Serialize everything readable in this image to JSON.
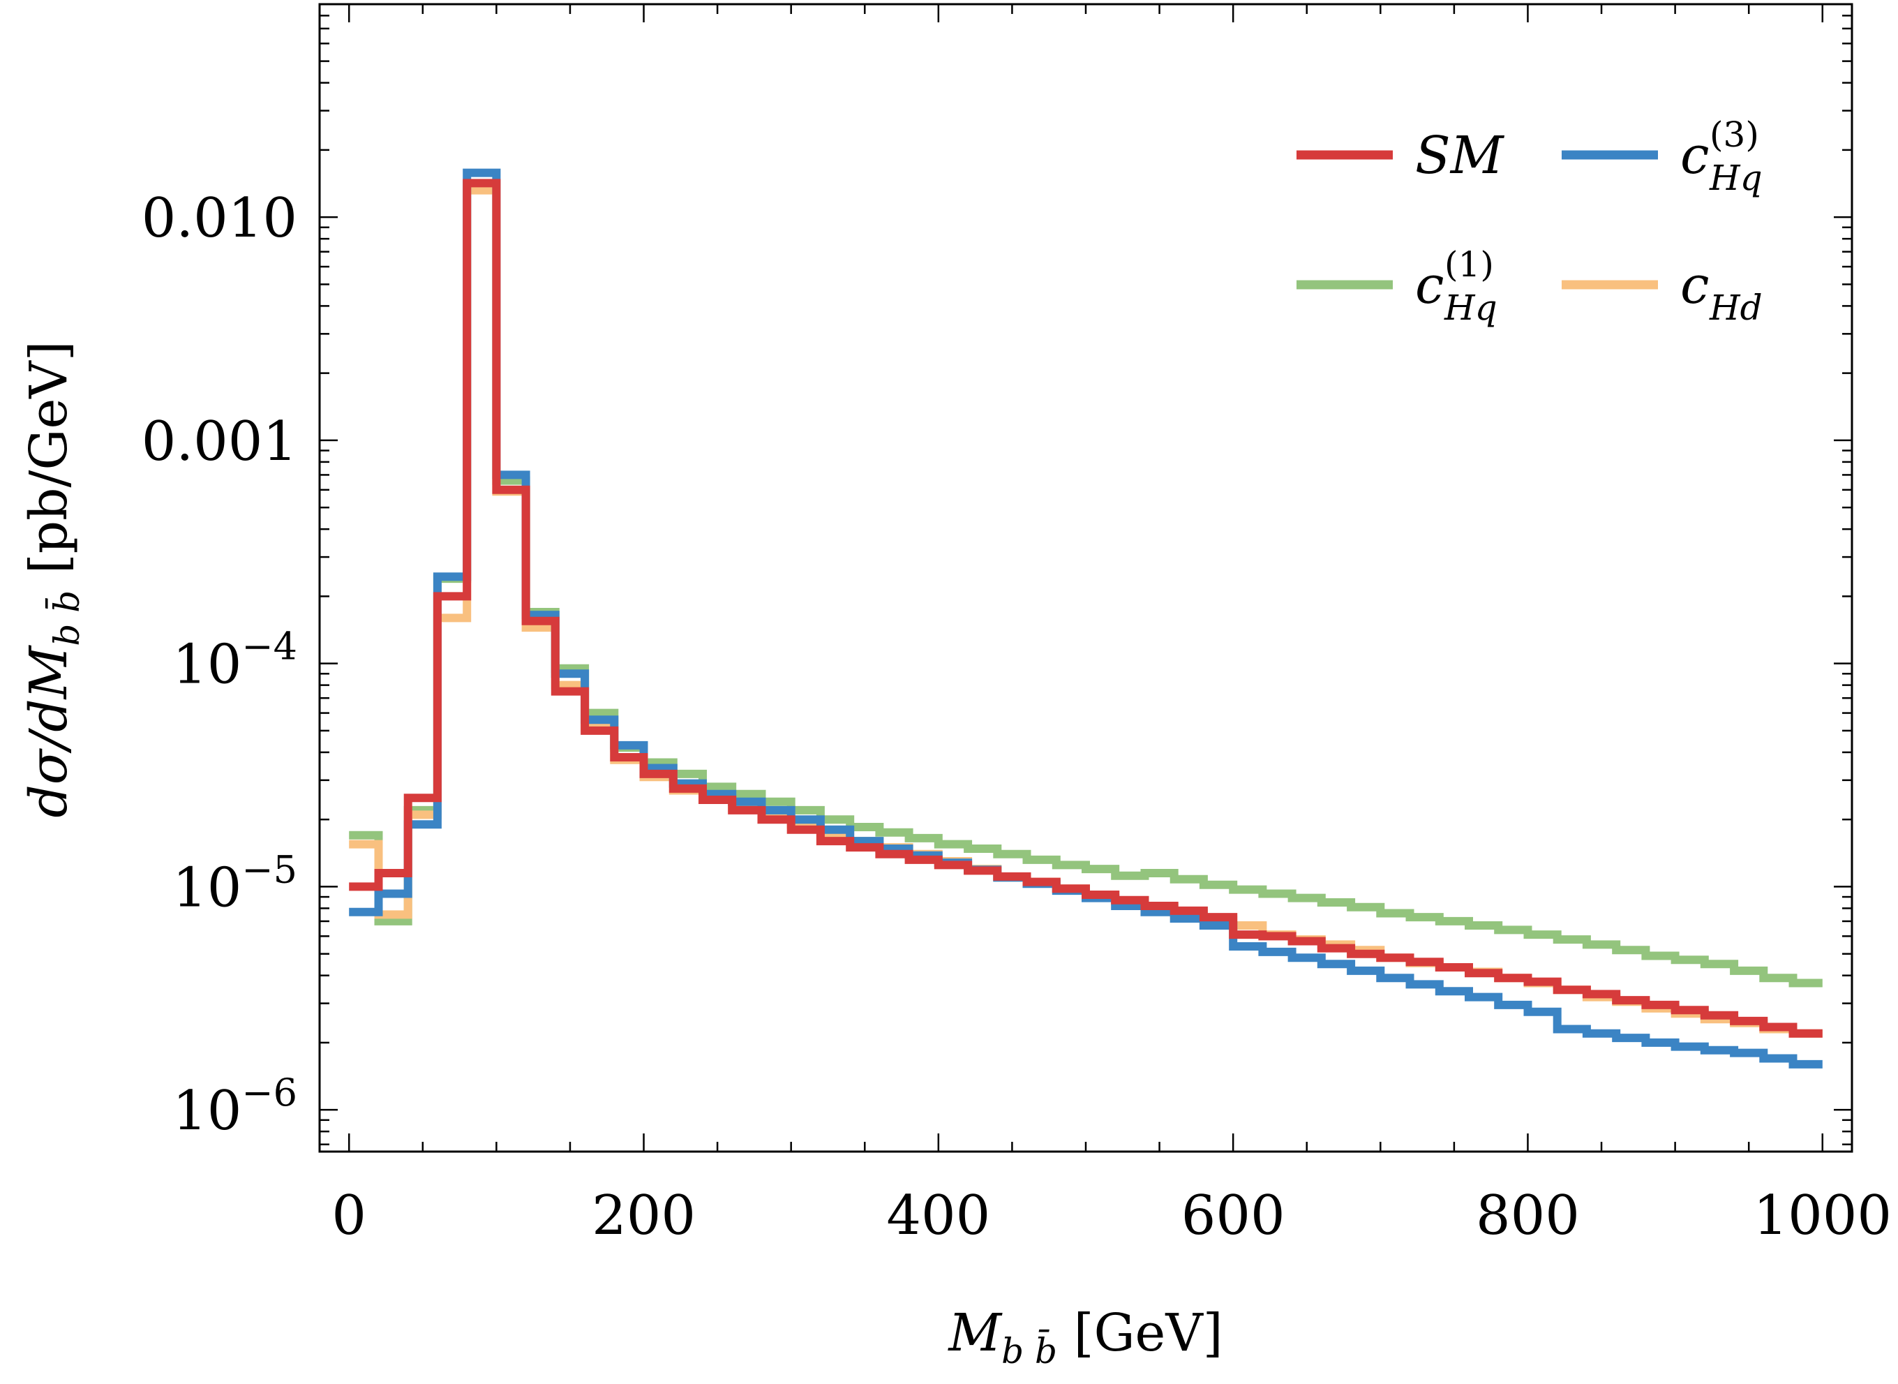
{
  "chart_data": {
    "type": "line",
    "step": true,
    "title": "",
    "xlabel": "M_{b b̄} [GeV]",
    "ylabel": "dσ/dM_{b b̄} [pb/GeV]",
    "xlim": [
      -20,
      1020
    ],
    "ylim": [
      6.5e-07,
      0.09
    ],
    "yscale": "log",
    "xticks": [
      0,
      200,
      400,
      600,
      800,
      1000
    ],
    "xtick_labels": [
      "0",
      "200",
      "400",
      "600",
      "800",
      "1000"
    ],
    "ytick_labels": [
      {
        "base": "0.010",
        "exp": ""
      },
      {
        "base": "0.001",
        "exp": ""
      },
      {
        "base": "10",
        "exp": "−4"
      },
      {
        "base": "10",
        "exp": "−5"
      },
      {
        "base": "10",
        "exp": "−6"
      }
    ],
    "ytick_values": [
      0.01,
      0.001,
      0.0001,
      1e-05,
      1e-06
    ],
    "bin_edges": [
      0,
      20,
      40,
      60,
      80,
      100,
      120,
      140,
      160,
      180,
      200,
      220,
      240,
      260,
      280,
      300,
      320,
      340,
      360,
      380,
      400,
      420,
      440,
      460,
      480,
      500,
      520,
      540,
      560,
      580,
      600,
      620,
      640,
      660,
      680,
      700,
      720,
      740,
      760,
      780,
      800,
      820,
      840,
      860,
      880,
      900,
      920,
      940,
      960,
      980,
      1000
    ],
    "series": [
      {
        "name": "c_Hq^(1)",
        "color": "#93c47d",
        "values": [
          1.7e-05,
          7e-06,
          2.2e-05,
          0.00024,
          0.014,
          0.00066,
          0.00017,
          9.5e-05,
          6e-05,
          4.2e-05,
          3.6e-05,
          3.2e-05,
          2.8e-05,
          2.6e-05,
          2.4e-05,
          2.2e-05,
          2e-05,
          1.85e-05,
          1.75e-05,
          1.65e-05,
          1.55e-05,
          1.48e-05,
          1.4e-05,
          1.32e-05,
          1.25e-05,
          1.2e-05,
          1.12e-05,
          1.15e-05,
          1.08e-05,
          1.02e-05,
          9.7e-06,
          9.3e-06,
          8.9e-06,
          8.5e-06,
          8.1e-06,
          7.6e-06,
          7.3e-06,
          7e-06,
          6.7e-06,
          6.4e-06,
          6.1e-06,
          5.8e-06,
          5.5e-06,
          5.2e-06,
          4.9e-06,
          4.7e-06,
          4.5e-06,
          4.2e-06,
          3.9e-06,
          3.7e-06
        ]
      },
      {
        "name": "c_Hd",
        "color": "#f9c07f",
        "values": [
          1.55e-05,
          7.5e-06,
          2.1e-05,
          0.00016,
          0.0132,
          0.00059,
          0.000145,
          8e-05,
          5.2e-05,
          3.7e-05,
          3.1e-05,
          2.7e-05,
          2.45e-05,
          2.25e-05,
          2.05e-05,
          1.9e-05,
          1.7e-05,
          1.6e-05,
          1.5e-05,
          1.4e-05,
          1.3e-05,
          1.2e-05,
          1.1e-05,
          1.05e-05,
          9.8e-06,
          9.2e-06,
          8.6e-06,
          8.1e-06,
          7.6e-06,
          7.1e-06,
          6.7e-06,
          6.1e-06,
          5.8e-06,
          5.5e-06,
          5.2e-06,
          4.8e-06,
          4.55e-06,
          4.35e-06,
          4.15e-06,
          3.9e-06,
          3.7e-06,
          3.45e-06,
          3.2e-06,
          3.05e-06,
          2.85e-06,
          2.7e-06,
          2.55e-06,
          2.45e-06,
          2.3e-06,
          2.2e-06
        ]
      },
      {
        "name": "c_Hq^(3)",
        "color": "#3b84c4",
        "values": [
          7.7e-06,
          9.3e-06,
          1.9e-05,
          0.000245,
          0.0158,
          0.0007,
          0.000165,
          9e-05,
          5.6e-05,
          4.3e-05,
          3.4e-05,
          2.9e-05,
          2.6e-05,
          2.4e-05,
          2.2e-05,
          2e-05,
          1.8e-05,
          1.6e-05,
          1.48e-05,
          1.38e-05,
          1.28e-05,
          1.19e-05,
          1.1e-05,
          1.03e-05,
          9.6e-06,
          8.9e-06,
          8.2e-06,
          7.7e-06,
          7.2e-06,
          6.7e-06,
          5.4e-06,
          5.1e-06,
          4.8e-06,
          4.5e-06,
          4.2e-06,
          3.9e-06,
          3.65e-06,
          3.4e-06,
          3.2e-06,
          2.95e-06,
          2.75e-06,
          2.3e-06,
          2.2e-06,
          2.1e-06,
          2e-06,
          1.92e-06,
          1.85e-06,
          1.8e-06,
          1.7e-06,
          1.6e-06
        ]
      },
      {
        "name": "SM",
        "color": "#d63b3b",
        "values": [
          1e-05,
          1.15e-05,
          2.5e-05,
          0.0002,
          0.0142,
          0.0006,
          0.000155,
          7.5e-05,
          5e-05,
          3.8e-05,
          3.2e-05,
          2.75e-05,
          2.45e-05,
          2.2e-05,
          2e-05,
          1.8e-05,
          1.6e-05,
          1.5e-05,
          1.4e-05,
          1.32e-05,
          1.25e-05,
          1.18e-05,
          1.11e-05,
          1.05e-05,
          9.8e-06,
          9.2e-06,
          8.7e-06,
          8.2e-06,
          7.8e-06,
          7.3e-06,
          6.1e-06,
          6e-06,
          5.7e-06,
          5.3e-06,
          5e-06,
          4.8e-06,
          4.6e-06,
          4.35e-06,
          4.1e-06,
          3.9e-06,
          3.75e-06,
          3.45e-06,
          3.3e-06,
          3.1e-06,
          2.95e-06,
          2.8e-06,
          2.65e-06,
          2.5e-06,
          2.35e-06,
          2.2e-06
        ]
      }
    ],
    "legend": [
      {
        "label": "SM",
        "sup": "",
        "sub": "",
        "color": "#d63b3b"
      },
      {
        "label": "c",
        "sup": "(3)",
        "sub": "Hq",
        "color": "#3b84c4"
      },
      {
        "label": "c",
        "sup": "(1)",
        "sub": "Hq",
        "color": "#93c47d"
      },
      {
        "label": "c",
        "sup": "",
        "sub": "Hd",
        "color": "#f9c07f"
      }
    ],
    "legend_position": "top-right",
    "grid": false
  }
}
